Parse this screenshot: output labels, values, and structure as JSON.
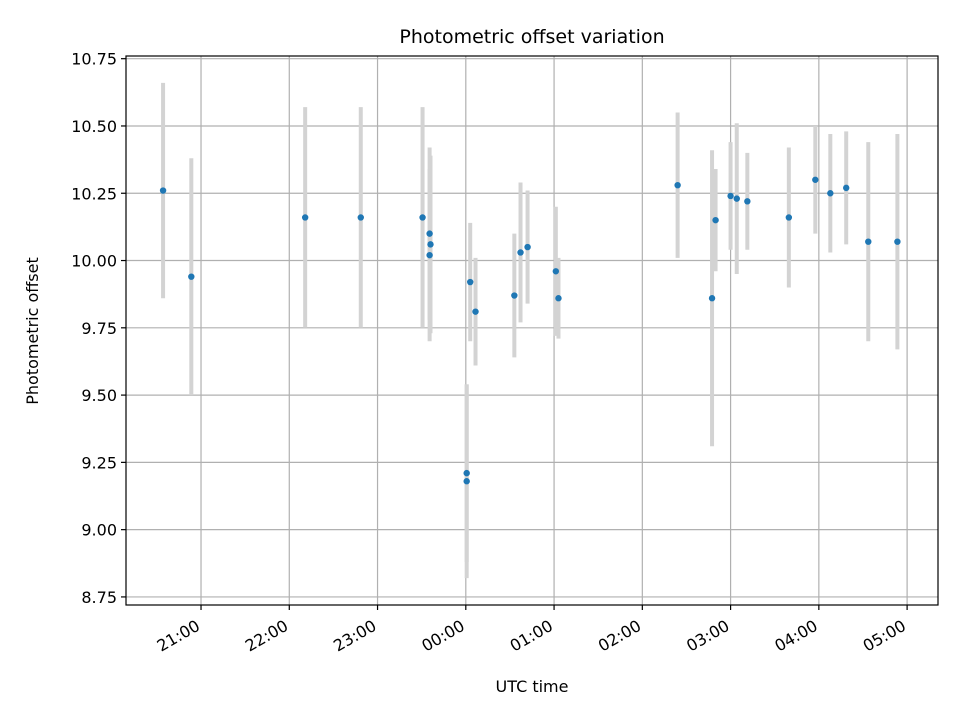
{
  "chart_data": {
    "type": "scatter",
    "title": "Photometric offset variation",
    "xlabel": "UTC time",
    "ylabel": "Photometric offset",
    "x_unit": "hours",
    "xlim": [
      -3.85,
      5.35
    ],
    "ylim": [
      8.72,
      10.76
    ],
    "x_ticks": [
      {
        "value": -3,
        "label": "21:00"
      },
      {
        "value": -2,
        "label": "22:00"
      },
      {
        "value": -1,
        "label": "23:00"
      },
      {
        "value": 0,
        "label": "00:00"
      },
      {
        "value": 1,
        "label": "01:00"
      },
      {
        "value": 2,
        "label": "02:00"
      },
      {
        "value": 3,
        "label": "03:00"
      },
      {
        "value": 4,
        "label": "04:00"
      },
      {
        "value": 5,
        "label": "05:00"
      }
    ],
    "y_ticks": [
      "8.75",
      "9.00",
      "9.25",
      "9.50",
      "9.75",
      "10.00",
      "10.25",
      "10.50",
      "10.75"
    ],
    "grid": true,
    "colors": {
      "points": "#1f77b4",
      "errorbars": "#d3d3d3",
      "grid": "#b0b0b0"
    },
    "series": [
      {
        "points": [
          {
            "x": -3.43,
            "y": 10.26,
            "yerr": 0.4
          },
          {
            "x": -3.11,
            "y": 9.94,
            "yerr": 0.44
          },
          {
            "x": -1.82,
            "y": 10.16,
            "yerr": 0.41
          },
          {
            "x": -1.19,
            "y": 10.16,
            "yerr": 0.41
          },
          {
            "x": -0.49,
            "y": 10.16,
            "yerr": 0.41
          },
          {
            "x": -0.41,
            "y": 10.1,
            "yerr": 0.32
          },
          {
            "x": -0.4,
            "y": 10.06,
            "yerr": 0.33
          },
          {
            "x": -0.41,
            "y": 10.02,
            "yerr": 0.32
          },
          {
            "x": 0.01,
            "y": 9.21,
            "yerr": 0.33
          },
          {
            "x": 0.01,
            "y": 9.18,
            "yerr": 0.36
          },
          {
            "x": 0.05,
            "y": 9.92,
            "yerr": 0.22
          },
          {
            "x": 0.11,
            "y": 9.81,
            "yerr": 0.2
          },
          {
            "x": 0.55,
            "y": 9.87,
            "yerr": 0.23
          },
          {
            "x": 0.62,
            "y": 10.03,
            "yerr": 0.26
          },
          {
            "x": 0.7,
            "y": 10.05,
            "yerr": 0.21
          },
          {
            "x": 1.02,
            "y": 9.96,
            "yerr": 0.24
          },
          {
            "x": 1.05,
            "y": 9.86,
            "yerr": 0.15
          },
          {
            "x": 2.4,
            "y": 10.28,
            "yerr": 0.27
          },
          {
            "x": 2.79,
            "y": 9.86,
            "yerr": 0.55
          },
          {
            "x": 2.83,
            "y": 10.15,
            "yerr": 0.19
          },
          {
            "x": 3.0,
            "y": 10.24,
            "yerr": 0.2
          },
          {
            "x": 3.07,
            "y": 10.23,
            "yerr": 0.28
          },
          {
            "x": 3.19,
            "y": 10.22,
            "yerr": 0.18
          },
          {
            "x": 3.66,
            "y": 10.16,
            "yerr": 0.26
          },
          {
            "x": 3.96,
            "y": 10.3,
            "yerr": 0.2
          },
          {
            "x": 4.13,
            "y": 10.25,
            "yerr": 0.22
          },
          {
            "x": 4.31,
            "y": 10.27,
            "yerr": 0.21
          },
          {
            "x": 4.56,
            "y": 10.07,
            "yerr": 0.37
          },
          {
            "x": 4.89,
            "y": 10.07,
            "yerr": 0.4
          }
        ]
      }
    ]
  }
}
